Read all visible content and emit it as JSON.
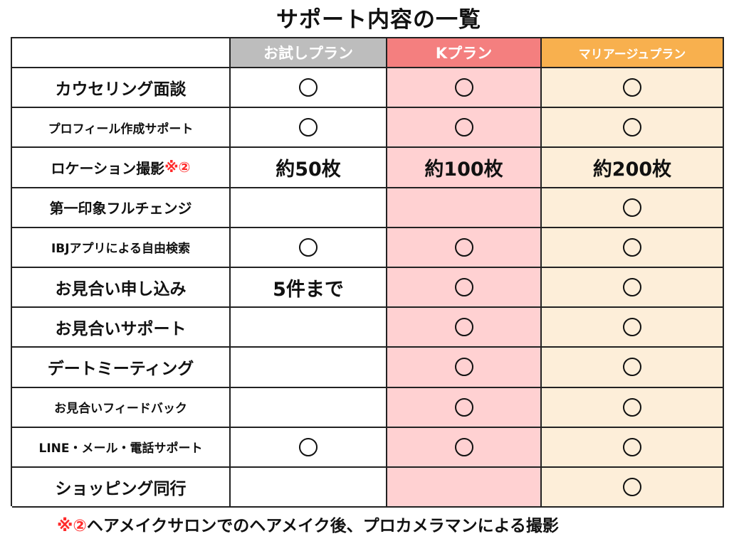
{
  "title": "サポート内容の一覧",
  "columns": {
    "c0": "",
    "c1": "お試しプラン",
    "c2": "Kプラン",
    "c3": "マリアージュプラン"
  },
  "colors": {
    "trial_header": "#bdbdbd",
    "k_header": "#f47f7f",
    "mariage_header": "#f8b04e",
    "k_body": "#ffd1d2",
    "mariage_body": "#fdeed9",
    "note_mark": "#ff2a2a"
  },
  "rows": [
    {
      "label": "カウセリング面談",
      "label_mark": "",
      "trial": "○",
      "k": "○",
      "mariage": "○"
    },
    {
      "label": "プロフィール作成サポート",
      "label_mark": "",
      "trial": "○",
      "k": "○",
      "mariage": "○"
    },
    {
      "label": "ロケーション撮影",
      "label_mark": "※②",
      "trial": "約50枚",
      "k": "約100枚",
      "mariage": "約200枚"
    },
    {
      "label": "第一印象フルチェンジ",
      "label_mark": "",
      "trial": "",
      "k": "",
      "mariage": "○"
    },
    {
      "label": "IBJアプリによる自由検索",
      "label_mark": "",
      "trial": "○",
      "k": "○",
      "mariage": "○"
    },
    {
      "label": "お見合い申し込み",
      "label_mark": "",
      "trial": "5件まで",
      "k": "○",
      "mariage": "○"
    },
    {
      "label": "お見合いサポート",
      "label_mark": "",
      "trial": "",
      "k": "○",
      "mariage": "○"
    },
    {
      "label": "デートミーティング",
      "label_mark": "",
      "trial": "",
      "k": "○",
      "mariage": "○"
    },
    {
      "label": "お見合いフィードバック",
      "label_mark": "",
      "trial": "",
      "k": "○",
      "mariage": "○"
    },
    {
      "label": "LINE・メール・電話サポート",
      "label_mark": "",
      "trial": "○",
      "k": "○",
      "mariage": "○"
    },
    {
      "label": "ショッピング同行",
      "label_mark": "",
      "trial": "",
      "k": "",
      "mariage": "○"
    }
  ],
  "footer": {
    "mark": "※②",
    "text": "ヘアメイクサロンでのヘアメイク後、プロカメラマンによる撮影"
  }
}
